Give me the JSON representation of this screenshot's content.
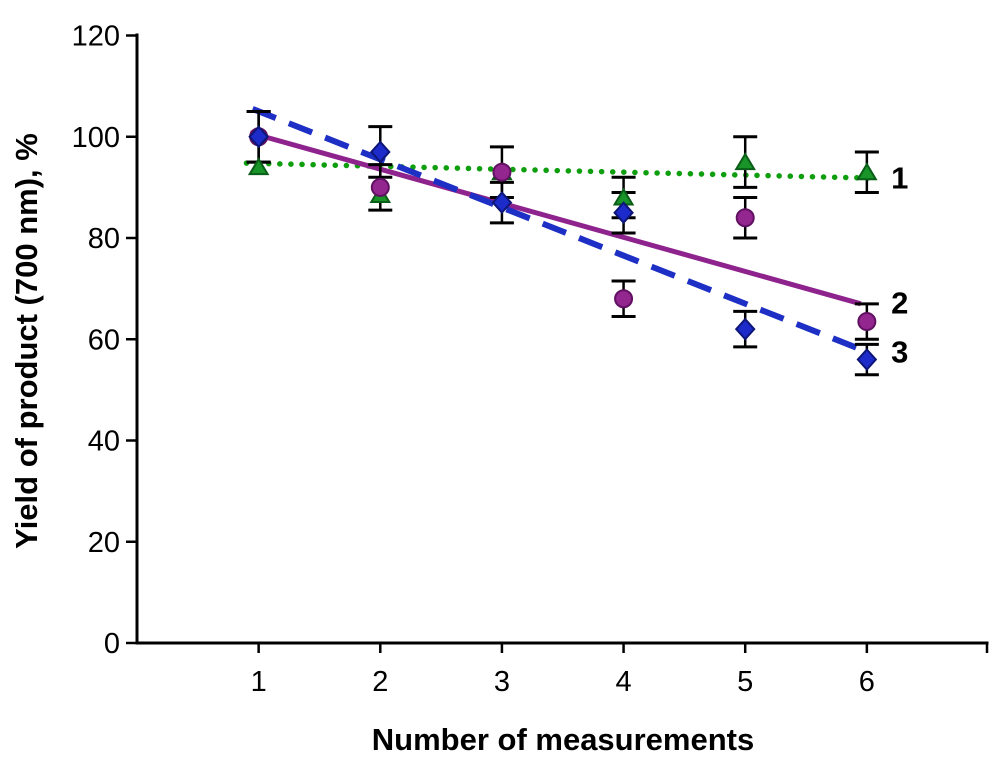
{
  "figure": {
    "background": "#ffffff",
    "axis_color": "#000000",
    "text_color": "#000000",
    "error_bar_color": "#000000"
  },
  "chart_data": {
    "type": "scatter",
    "title": "",
    "xlabel": "Number of  measurements",
    "ylabel": "Yield of product (700 nm), %",
    "xlim": [
      0,
      7
    ],
    "ylim": [
      0,
      120
    ],
    "xticks": [
      1,
      2,
      3,
      4,
      5,
      6
    ],
    "yticks": [
      0,
      20,
      40,
      60,
      80,
      100,
      120
    ],
    "grid": false,
    "legend_position": "series end-labels at right edge",
    "x": [
      1,
      2,
      3,
      4,
      5,
      6
    ],
    "series": [
      {
        "name": "1",
        "marker": "triangle",
        "marker_color": "#189428",
        "marker_edge": "#0b5e18",
        "line_style": "dotted",
        "line_color": "#0e9e0e",
        "line_width": 5.5,
        "values": [
          94,
          88.5,
          93,
          88,
          95,
          93
        ],
        "errors": [
          null,
          null,
          null,
          4,
          5,
          4
        ],
        "trend": {
          "x1": 0.9,
          "y1": 94.8,
          "x2": 6.08,
          "y2": 91.8
        }
      },
      {
        "name": "2",
        "marker": "circle",
        "marker_color": "#93268f",
        "marker_edge": "#611161",
        "line_style": "solid",
        "line_color": "#8e238e",
        "line_width": 5,
        "values": [
          100,
          90,
          93,
          68,
          84,
          63.5
        ],
        "errors": [
          5,
          4.5,
          5,
          3.5,
          4,
          3.5
        ],
        "trend": {
          "x1": 0.93,
          "y1": 100.8,
          "x2": 5.95,
          "y2": 67
        }
      },
      {
        "name": "3",
        "marker": "diamond",
        "marker_color": "#1c2bc9",
        "marker_edge": "#0d1577",
        "line_style": "dashed",
        "line_color": "#1d2fc4",
        "line_width": 6,
        "values": [
          100,
          97,
          87,
          85,
          62,
          56
        ],
        "errors": [
          5,
          5,
          4,
          4,
          3.5,
          3
        ],
        "trend": {
          "x1": 0.95,
          "y1": 105.5,
          "x2": 5.95,
          "y2": 58
        }
      }
    ],
    "annotations": [
      {
        "text": "1",
        "x": 6.27,
        "y": 92.0
      },
      {
        "text": "2",
        "x": 6.27,
        "y": 67.3
      },
      {
        "text": "3",
        "x": 6.27,
        "y": 57.6
      }
    ]
  }
}
